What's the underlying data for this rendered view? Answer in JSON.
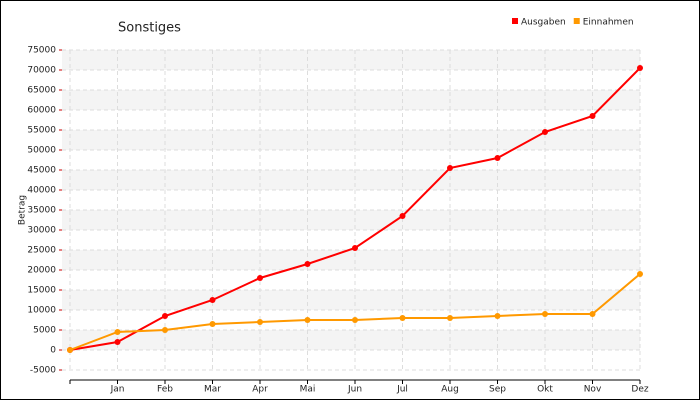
{
  "chart_data": {
    "type": "line",
    "title": "Sonstiges",
    "y_label": "Betrag",
    "categories": [
      null,
      "Jan",
      "Feb",
      "Mar",
      "Apr",
      "Mai",
      "Jun",
      "Jul",
      "Aug",
      "Sep",
      "Okt",
      "Nov",
      "Dez"
    ],
    "series": [
      {
        "name": "Ausgaben",
        "color": "#ff0000",
        "values": [
          0,
          2000,
          8500,
          12500,
          18000,
          21500,
          25500,
          33500,
          45500,
          48000,
          54500,
          58500,
          70500
        ]
      },
      {
        "name": "Einnahmen",
        "color": "#ff9900",
        "values": [
          0,
          4500,
          5000,
          6500,
          7000,
          7500,
          7500,
          8000,
          8000,
          8500,
          9000,
          9000,
          19000
        ]
      }
    ],
    "ylim": [
      -5000,
      75000
    ],
    "yticks": [
      -5000,
      0,
      5000,
      10000,
      15000,
      20000,
      25000,
      30000,
      35000,
      40000,
      45000,
      50000,
      55000,
      60000,
      65000,
      70000,
      75000
    ],
    "grid": true,
    "legend": "top-right"
  }
}
